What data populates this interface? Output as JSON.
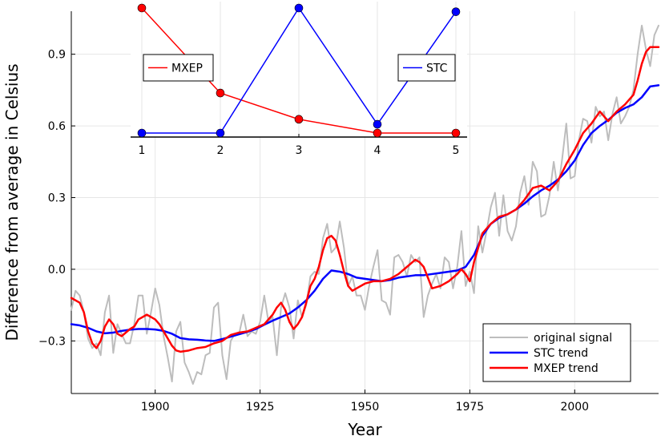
{
  "chart_data": [
    {
      "type": "line",
      "title": "",
      "xlabel": "Year",
      "ylabel": "Difference from average in Celsius",
      "xlim": [
        1880,
        2020
      ],
      "ylim": [
        -0.52,
        1.08
      ],
      "xticks": [
        1900,
        1925,
        1950,
        1975,
        2000
      ],
      "yticks": [
        -0.3,
        0.0,
        0.3,
        0.6,
        0.9
      ],
      "ytick_labels": [
        "−0.3",
        "0.0",
        "0.3",
        "0.6",
        "0.9"
      ],
      "grid": true,
      "legend_position": "bottom-right",
      "series": [
        {
          "name": "original signal",
          "color": "#bdbdbd",
          "x": [
            1880,
            1881,
            1882,
            1883,
            1884,
            1885,
            1886,
            1887,
            1888,
            1889,
            1890,
            1891,
            1892,
            1893,
            1894,
            1895,
            1896,
            1897,
            1898,
            1899,
            1900,
            1901,
            1902,
            1903,
            1904,
            1905,
            1906,
            1907,
            1908,
            1909,
            1910,
            1911,
            1912,
            1913,
            1914,
            1915,
            1916,
            1917,
            1918,
            1919,
            1920,
            1921,
            1922,
            1923,
            1924,
            1925,
            1926,
            1927,
            1928,
            1929,
            1930,
            1931,
            1932,
            1933,
            1934,
            1935,
            1936,
            1937,
            1938,
            1939,
            1940,
            1941,
            1942,
            1943,
            1944,
            1945,
            1946,
            1947,
            1948,
            1949,
            1950,
            1951,
            1952,
            1953,
            1954,
            1955,
            1956,
            1957,
            1958,
            1959,
            1960,
            1961,
            1962,
            1963,
            1964,
            1965,
            1966,
            1967,
            1968,
            1969,
            1970,
            1971,
            1972,
            1973,
            1974,
            1975,
            1976,
            1977,
            1978,
            1979,
            1980,
            1981,
            1982,
            1983,
            1984,
            1985,
            1986,
            1987,
            1988,
            1989,
            1990,
            1991,
            1992,
            1993,
            1994,
            1995,
            1996,
            1997,
            1998,
            1999,
            2000,
            2001,
            2002,
            2003,
            2004,
            2005,
            2006,
            2007,
            2008,
            2009,
            2010,
            2011,
            2012,
            2013,
            2014,
            2015,
            2016,
            2017,
            2018,
            2019,
            2020
          ],
          "y": [
            -0.17,
            -0.09,
            -0.11,
            -0.18,
            -0.29,
            -0.33,
            -0.31,
            -0.36,
            -0.18,
            -0.11,
            -0.35,
            -0.23,
            -0.27,
            -0.31,
            -0.31,
            -0.23,
            -0.11,
            -0.11,
            -0.27,
            -0.18,
            -0.08,
            -0.15,
            -0.28,
            -0.37,
            -0.47,
            -0.26,
            -0.22,
            -0.39,
            -0.43,
            -0.48,
            -0.43,
            -0.44,
            -0.36,
            -0.35,
            -0.16,
            -0.14,
            -0.36,
            -0.46,
            -0.3,
            -0.27,
            -0.27,
            -0.19,
            -0.28,
            -0.26,
            -0.27,
            -0.22,
            -0.11,
            -0.22,
            -0.2,
            -0.36,
            -0.16,
            -0.1,
            -0.16,
            -0.29,
            -0.13,
            -0.2,
            -0.15,
            -0.03,
            -0.01,
            -0.02,
            0.13,
            0.19,
            0.07,
            0.09,
            0.2,
            0.09,
            -0.07,
            -0.03,
            -0.11,
            -0.11,
            -0.17,
            -0.07,
            0.01,
            0.08,
            -0.13,
            -0.14,
            -0.19,
            0.05,
            0.06,
            0.03,
            -0.03,
            0.06,
            0.03,
            0.05,
            -0.2,
            -0.11,
            -0.06,
            -0.02,
            -0.08,
            0.05,
            0.03,
            -0.08,
            0.01,
            0.16,
            -0.07,
            -0.01,
            -0.1,
            0.18,
            0.07,
            0.16,
            0.26,
            0.32,
            0.14,
            0.31,
            0.16,
            0.12,
            0.18,
            0.32,
            0.39,
            0.27,
            0.45,
            0.41,
            0.22,
            0.23,
            0.31,
            0.45,
            0.33,
            0.46,
            0.61,
            0.38,
            0.39,
            0.54,
            0.63,
            0.62,
            0.53,
            0.68,
            0.64,
            0.66,
            0.54,
            0.65,
            0.72,
            0.61,
            0.64,
            0.68,
            0.75,
            0.9,
            1.02,
            0.92,
            0.85,
            0.98,
            1.02
          ]
        },
        {
          "name": "STC trend",
          "color": "#0000ff",
          "x": [
            1880,
            1882,
            1884,
            1886,
            1888,
            1890,
            1892,
            1894,
            1896,
            1898,
            1900,
            1902,
            1904,
            1906,
            1908,
            1910,
            1912,
            1914,
            1916,
            1918,
            1920,
            1922,
            1924,
            1926,
            1928,
            1930,
            1932,
            1934,
            1936,
            1938,
            1940,
            1942,
            1944,
            1946,
            1948,
            1950,
            1952,
            1954,
            1956,
            1958,
            1960,
            1962,
            1964,
            1966,
            1968,
            1970,
            1972,
            1974,
            1976,
            1978,
            1980,
            1982,
            1984,
            1986,
            1988,
            1990,
            1992,
            1994,
            1996,
            1998,
            2000,
            2002,
            2004,
            2006,
            2008,
            2010,
            2012,
            2014,
            2016,
            2018,
            2020
          ],
          "y": [
            -0.23,
            -0.235,
            -0.245,
            -0.26,
            -0.268,
            -0.265,
            -0.258,
            -0.253,
            -0.25,
            -0.25,
            -0.252,
            -0.258,
            -0.27,
            -0.288,
            -0.293,
            -0.295,
            -0.298,
            -0.3,
            -0.292,
            -0.282,
            -0.272,
            -0.262,
            -0.25,
            -0.232,
            -0.215,
            -0.2,
            -0.185,
            -0.16,
            -0.13,
            -0.09,
            -0.04,
            -0.005,
            -0.01,
            -0.02,
            -0.035,
            -0.04,
            -0.045,
            -0.05,
            -0.045,
            -0.035,
            -0.03,
            -0.025,
            -0.025,
            -0.02,
            -0.015,
            -0.01,
            -0.005,
            0.01,
            0.06,
            0.14,
            0.19,
            0.215,
            0.23,
            0.25,
            0.275,
            0.305,
            0.33,
            0.35,
            0.375,
            0.41,
            0.455,
            0.52,
            0.57,
            0.6,
            0.625,
            0.655,
            0.675,
            0.69,
            0.72,
            0.765,
            0.77
          ]
        },
        {
          "name": "MXEP trend",
          "color": "#ff0000",
          "x": [
            1880,
            1882,
            1883,
            1884,
            1885,
            1886,
            1887,
            1888,
            1889,
            1890,
            1891,
            1892,
            1894,
            1895,
            1896,
            1898,
            1899,
            1900,
            1901,
            1902,
            1903,
            1904,
            1905,
            1906,
            1908,
            1910,
            1912,
            1914,
            1916,
            1918,
            1920,
            1922,
            1924,
            1926,
            1928,
            1929,
            1930,
            1931,
            1932,
            1933,
            1934,
            1935,
            1936,
            1937,
            1938,
            1939,
            1940,
            1941,
            1942,
            1943,
            1944,
            1945,
            1946,
            1947,
            1948,
            1950,
            1952,
            1954,
            1956,
            1958,
            1960,
            1962,
            1963,
            1964,
            1966,
            1968,
            1970,
            1972,
            1973,
            1974,
            1975,
            1976,
            1978,
            1980,
            1982,
            1984,
            1986,
            1988,
            1990,
            1992,
            1994,
            1996,
            1998,
            2000,
            2002,
            2004,
            2006,
            2008,
            2010,
            2012,
            2014,
            2015,
            2016,
            2017,
            2018,
            2020
          ],
          "y": [
            -0.12,
            -0.14,
            -0.18,
            -0.26,
            -0.31,
            -0.33,
            -0.3,
            -0.24,
            -0.21,
            -0.23,
            -0.27,
            -0.28,
            -0.25,
            -0.24,
            -0.21,
            -0.19,
            -0.2,
            -0.21,
            -0.23,
            -0.26,
            -0.29,
            -0.32,
            -0.34,
            -0.345,
            -0.34,
            -0.33,
            -0.325,
            -0.31,
            -0.3,
            -0.275,
            -0.265,
            -0.26,
            -0.245,
            -0.23,
            -0.19,
            -0.16,
            -0.14,
            -0.17,
            -0.22,
            -0.25,
            -0.23,
            -0.2,
            -0.14,
            -0.07,
            -0.04,
            0.01,
            0.08,
            0.13,
            0.14,
            0.12,
            0.06,
            -0.01,
            -0.07,
            -0.09,
            -0.08,
            -0.06,
            -0.05,
            -0.05,
            -0.04,
            -0.02,
            0.01,
            0.04,
            0.03,
            0.01,
            -0.08,
            -0.07,
            -0.05,
            -0.02,
            0.0,
            -0.02,
            -0.05,
            0.03,
            0.15,
            0.19,
            0.22,
            0.23,
            0.25,
            0.29,
            0.34,
            0.35,
            0.33,
            0.37,
            0.44,
            0.5,
            0.57,
            0.61,
            0.66,
            0.62,
            0.66,
            0.69,
            0.73,
            0.79,
            0.86,
            0.91,
            0.93,
            0.93
          ]
        }
      ]
    },
    {
      "type": "line",
      "title": "",
      "xlabel": "",
      "ylabel": "",
      "xlim": [
        0.95,
        5.05
      ],
      "ylim": [
        0.0,
        1.0
      ],
      "xticks": [
        1,
        2,
        3,
        4,
        5
      ],
      "yticks": [],
      "grid": true,
      "legend": [
        {
          "name": "MXEP",
          "position": "left"
        },
        {
          "name": "STC",
          "position": "right"
        }
      ],
      "series": [
        {
          "name": "MXEP",
          "color": "#ff0000",
          "x": [
            1,
            2,
            3,
            4,
            5
          ],
          "y": [
            1.0,
            0.32,
            0.11,
            0.0,
            0.0
          ]
        },
        {
          "name": "STC",
          "color": "#0000ff",
          "x": [
            1,
            2,
            3,
            4,
            5
          ],
          "y": [
            0.0,
            0.0,
            1.0,
            0.07,
            0.97
          ]
        }
      ]
    }
  ]
}
